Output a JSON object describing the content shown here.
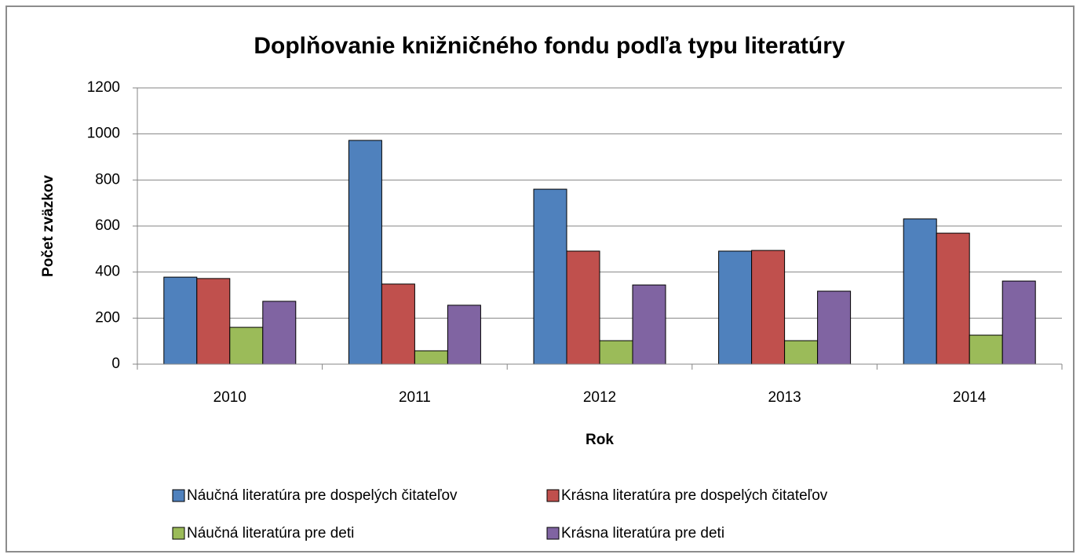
{
  "chart_data": {
    "type": "bar",
    "title": "Doplňovanie knižničného fondu podľa typu literatúry",
    "x_label": "Rok",
    "y_label": "Počet zväzkov",
    "categories": [
      "2010",
      "2011",
      "2012",
      "2013",
      "2014"
    ],
    "series": [
      {
        "name": "Náučná literatúra pre dospelých čitateľov",
        "color": "#4f81bd",
        "values": [
          378,
          972,
          760,
          491,
          631
        ]
      },
      {
        "name": "Krásna literatúra pre dospelých čitateľov",
        "color": "#c0504d",
        "values": [
          372,
          348,
          491,
          494,
          569
        ]
      },
      {
        "name": "Náučná literatúra pre deti",
        "color": "#9bbb59",
        "values": [
          160,
          58,
          102,
          102,
          126
        ]
      },
      {
        "name": "Krásna literatúra pre deti",
        "color": "#8064a2",
        "values": [
          273,
          256,
          344,
          317,
          361
        ]
      }
    ],
    "ylim": [
      0,
      1200
    ],
    "yticks": [
      0,
      200,
      400,
      600,
      800,
      1000,
      1200
    ],
    "grid": true,
    "legend": "bottom"
  }
}
